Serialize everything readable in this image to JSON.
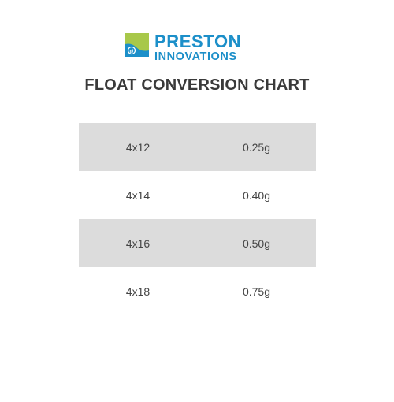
{
  "brand": {
    "name_line1": "PRESTON",
    "name_line2": "INNOVATIONS",
    "colors": {
      "primary_blue": "#1c8fc9",
      "lime_green": "#a8c84a"
    },
    "icon": "pi-logo-mark-icon"
  },
  "title": "FLOAT CONVERSION CHART",
  "table": {
    "rows": [
      {
        "size": "4x12",
        "weight": "0.25g"
      },
      {
        "size": "4x14",
        "weight": "0.40g"
      },
      {
        "size": "4x16",
        "weight": "0.50g"
      },
      {
        "size": "4x18",
        "weight": "0.75g"
      }
    ],
    "colors": {
      "shaded_row": "#dcdcdc",
      "text": "#444444"
    }
  }
}
